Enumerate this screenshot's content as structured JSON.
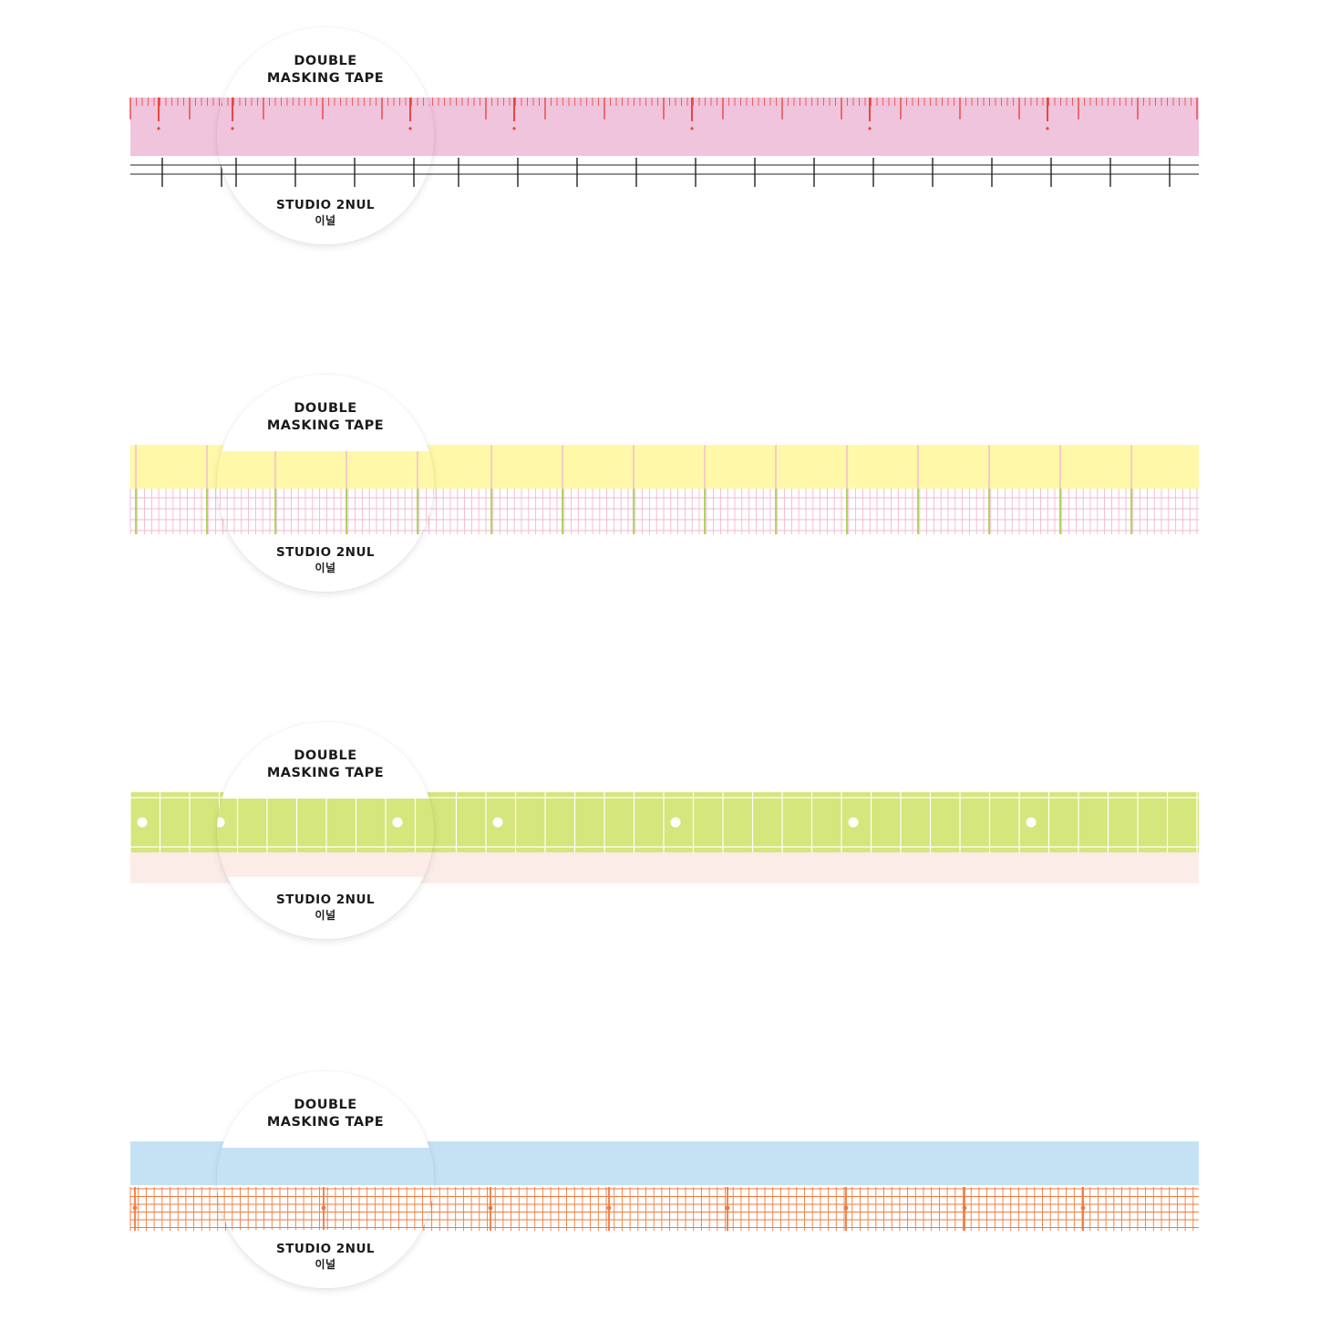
{
  "product": {
    "line1": "DOUBLE",
    "line2": "MASKING TAPE",
    "brand": "STUDIO 2NUL",
    "brand_korean": "이널"
  },
  "tapes": [
    {
      "name": "pink-ruler-tape",
      "top_color": "#f0c4dc",
      "bottom_color": "#ffffff",
      "tick_color": "#e8473f",
      "grid_color": "#222222"
    },
    {
      "name": "yellow-grid-tape",
      "top_color": "#fff8a8",
      "bottom_color": "#ffffff",
      "line_color": "#f2b8cf",
      "accent_color": "#9ccc3a"
    },
    {
      "name": "green-dot-tape",
      "top_color": "#d5e67c",
      "bottom_color": "#fcece8",
      "line_color": "#ffffff"
    },
    {
      "name": "blue-orange-grid-tape",
      "top_color": "#c5e2f5",
      "bottom_color": "#ffffff",
      "line_color": "#f07a3c"
    }
  ]
}
